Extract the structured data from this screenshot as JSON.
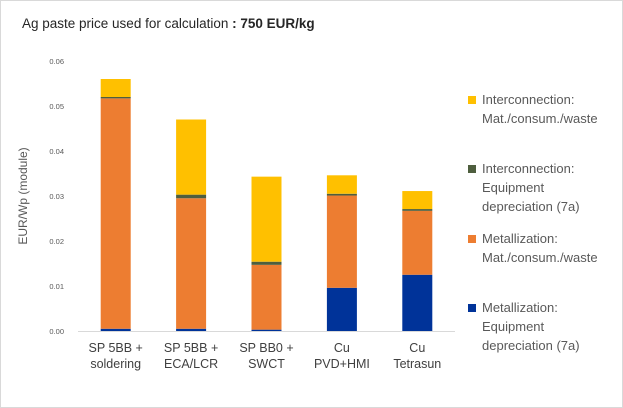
{
  "header": {
    "title_prefix": "Ag paste price used for calculation",
    "title_separator": " : ",
    "title_value": "750 EUR/kg"
  },
  "chart_data": {
    "type": "bar",
    "stacked": true,
    "title": "Ag paste price used for calculation : 750 EUR/kg",
    "xlabel": "",
    "ylabel": "EUR/Wp (module)",
    "ylim": [
      0,
      0.06
    ],
    "yticks": [
      "0.00",
      "0.01",
      "0.02",
      "0.03",
      "0.04",
      "0.05",
      "0.06"
    ],
    "grid": false,
    "legend_position": "right",
    "categories": [
      [
        "SP 5BB +",
        "soldering"
      ],
      [
        "SP 5BB +",
        "ECA/LCR"
      ],
      [
        "SP BB0 +",
        "SWCT"
      ],
      [
        "Cu",
        "PVD+HMI"
      ],
      [
        "Cu",
        "Tetrasun"
      ]
    ],
    "series": [
      {
        "name": "Metallization: Equipment depreciation (7a)",
        "legend_lines": [
          "Metallization:",
          "Equipment",
          "depreciation (7a)"
        ],
        "color": "#003399",
        "values": [
          0.0005,
          0.0005,
          0.0003,
          0.0096,
          0.0125
        ]
      },
      {
        "name": "Metallization: Mat./consum./waste",
        "legend_lines": [
          "Metallization:",
          "Mat./consum./waste"
        ],
        "color": "#ed7d31",
        "values": [
          0.0512,
          0.029,
          0.0144,
          0.0205,
          0.0142
        ]
      },
      {
        "name": "Interconnection: Equipment depreciation (7a)",
        "legend_lines": [
          "Interconnection:",
          "Equipment",
          "depreciation (7a)"
        ],
        "color": "#4e5e3e",
        "values": [
          0.0003,
          0.0008,
          0.0007,
          0.0004,
          0.0004
        ]
      },
      {
        "name": "Interconnection: Mat./consum./waste",
        "legend_lines": [
          "Interconnection:",
          "Mat./consum./waste"
        ],
        "color": "#ffc000",
        "values": [
          0.004,
          0.0167,
          0.0189,
          0.0041,
          0.004
        ]
      }
    ],
    "legend_order": [
      3,
      2,
      1,
      0
    ]
  }
}
